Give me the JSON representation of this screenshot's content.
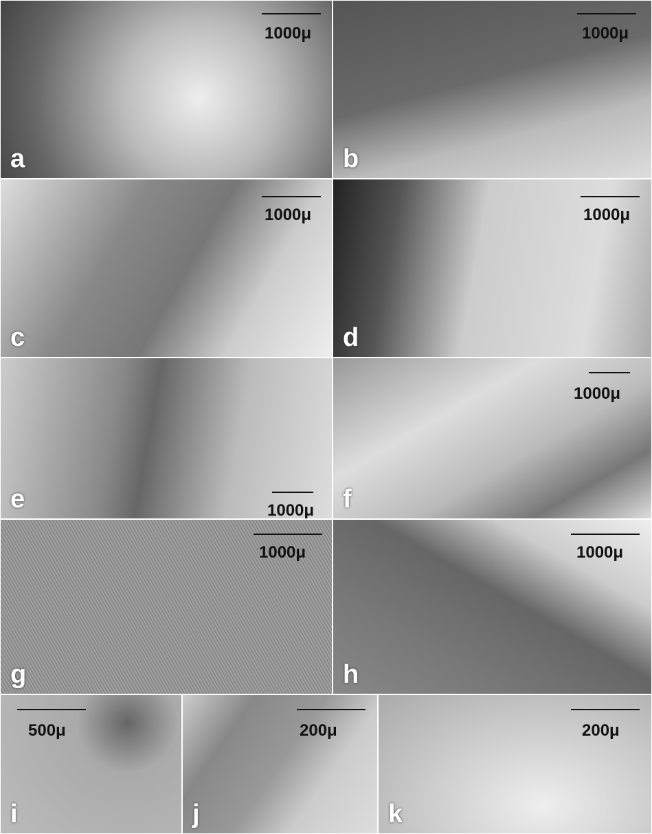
{
  "panels": [
    {
      "label": "a",
      "scale": "1000μ"
    },
    {
      "label": "b",
      "scale": "1000μ"
    },
    {
      "label": "c",
      "scale": "1000μ"
    },
    {
      "label": "d",
      "scale": "1000μ"
    },
    {
      "label": "e",
      "scale": "1000μ"
    },
    {
      "label": "f",
      "scale": "1000μ"
    },
    {
      "label": "g",
      "scale": "1000μ"
    },
    {
      "label": "h",
      "scale": "1000μ"
    },
    {
      "label": "i",
      "scale": "500μ"
    },
    {
      "label": "j",
      "scale": "200μ"
    },
    {
      "label": "k",
      "scale": "200μ"
    }
  ]
}
